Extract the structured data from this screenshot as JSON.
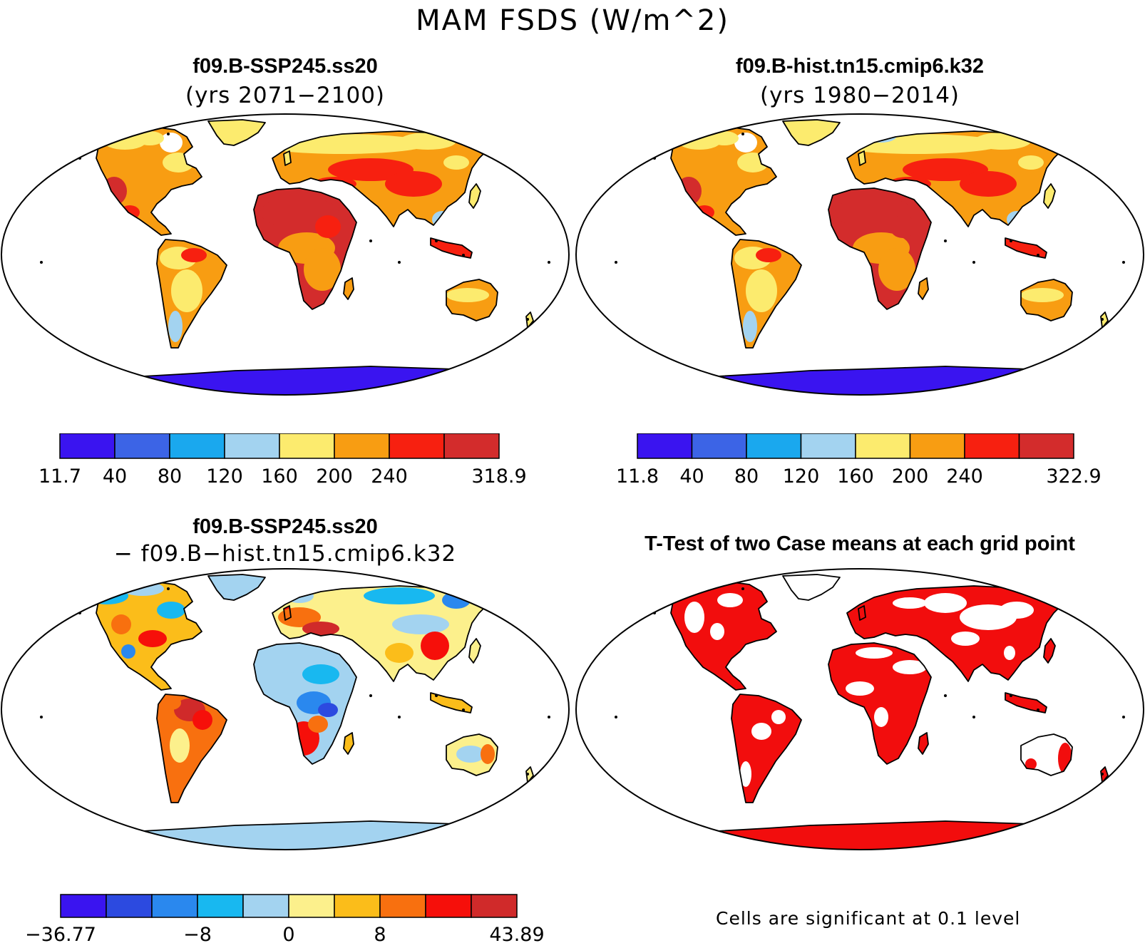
{
  "title": "MAM FSDS (W/m^2)",
  "panels": {
    "top_left": {
      "title_line1": "f09.B-SSP245.ss20",
      "title_line2": "(yrs 2071−2100)",
      "colorbar": {
        "labels": [
          "11.7",
          "40",
          "80",
          "120",
          "160",
          "200",
          "240",
          "318.9"
        ],
        "colors": [
          "#3a14f0",
          "#3c64e6",
          "#1aa8ee",
          "#a3d3f0",
          "#fceb6e",
          "#f89d12",
          "#f72010",
          "#d32c2c"
        ]
      }
    },
    "top_right": {
      "title_line1": "f09.B-hist.tn15.cmip6.k32",
      "title_line2": "(yrs 1980−2014)",
      "colorbar": {
        "labels": [
          "11.8",
          "40",
          "80",
          "120",
          "160",
          "200",
          "240",
          "322.9"
        ],
        "colors": [
          "#3a14f0",
          "#3c64e6",
          "#1aa8ee",
          "#a3d3f0",
          "#fceb6e",
          "#f89d12",
          "#f72010",
          "#d32c2c"
        ]
      }
    },
    "bottom_left": {
      "title_line1": "f09.B-SSP245.ss20",
      "title_line2": "− f09.B−hist.tn15.cmip6.k32",
      "colorbar": {
        "labels": [
          "−36.77",
          "−8",
          "0",
          "8",
          "43.89"
        ],
        "colors": [
          "#3a14f0",
          "#2c4ae0",
          "#2a88ee",
          "#18b8f0",
          "#a3d3f0",
          "#fcf08c",
          "#fbbd1a",
          "#f8700f",
          "#f60f0a",
          "#d02a2a"
        ]
      }
    },
    "bottom_right": {
      "title": "T-Test of two Case means at each grid point",
      "note": "Cells are significant at 0.1 level",
      "significant_color": "#f20d0d"
    }
  },
  "colors": {
    "ocean": "#ffffff",
    "antarctica_top": "#3a14f0",
    "antarctica_diff": "#a3d3f0",
    "coast": "#000000"
  }
}
